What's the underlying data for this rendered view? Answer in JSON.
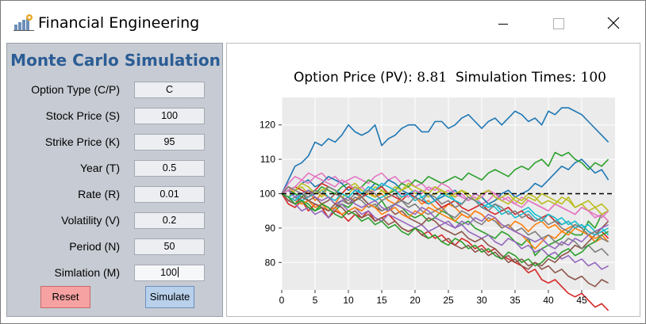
{
  "window": {
    "title": "Financial Engineering",
    "icon": "bar-chart-gear-icon",
    "controls": [
      "minimize-icon",
      "maximize-icon",
      "close-icon"
    ]
  },
  "panel": {
    "title": "Monte Carlo Simulation",
    "fields": [
      {
        "key": "option_type",
        "label": "Option Type (C/P)",
        "value": "C"
      },
      {
        "key": "stock_price",
        "label": "Stock Price (S)",
        "value": "100"
      },
      {
        "key": "strike_price",
        "label": "Strike Price (K)",
        "value": "95"
      },
      {
        "key": "year",
        "label": "Year (T)",
        "value": "0.5"
      },
      {
        "key": "rate",
        "label": "Rate (R)",
        "value": "0.01"
      },
      {
        "key": "volatility",
        "label": "Volatility (V)",
        "value": "0.2"
      },
      {
        "key": "period",
        "label": "Period (N)",
        "value": "50"
      },
      {
        "key": "simulation",
        "label": "Simlation (M)",
        "value": "100"
      }
    ],
    "reset_label": "Reset",
    "simulate_label": "Simulate"
  },
  "colors": {
    "panel_bg": "#c7cbd3",
    "title_blue": "#2b5d95",
    "reset_bg": "#f7a2a2",
    "simulate_bg": "#b8d0ea",
    "plot_bg": "#ebebeb"
  },
  "chart_title": {
    "label1": "Option Price (PV):",
    "value1": "8.81",
    "label2": "Simulation Times:",
    "value2": "100"
  },
  "chart_data": {
    "type": "line",
    "xlim": [
      0,
      50
    ],
    "ylim": [
      72,
      128
    ],
    "x_ticks": [
      0,
      5,
      10,
      15,
      20,
      25,
      30,
      35,
      40,
      45
    ],
    "y_ticks": [
      80,
      90,
      100,
      110,
      120
    ],
    "grid": true,
    "reference_line": {
      "y": 100,
      "style": "dashed",
      "color": "#000000"
    },
    "series": [
      {
        "color": "#1f77b4",
        "values": [
          100,
          104,
          108,
          109,
          111,
          115,
          114,
          116,
          115,
          117,
          120,
          118,
          117,
          118,
          120,
          114,
          116,
          117,
          119,
          120,
          120,
          118,
          118,
          121,
          121,
          119,
          120,
          122,
          123,
          121,
          119,
          121,
          122,
          120,
          122,
          124,
          123,
          121,
          122,
          120,
          124,
          123,
          125,
          125,
          124,
          123,
          121,
          119,
          117,
          115
        ]
      },
      {
        "color": "#2ca02c",
        "values": [
          100,
          101,
          99,
          98,
          97,
          95,
          96,
          93,
          95,
          97,
          96,
          98,
          99,
          97,
          96,
          98,
          95,
          97,
          96,
          94,
          93,
          94,
          92,
          93,
          95,
          94,
          92,
          91,
          92,
          90,
          89,
          88,
          87,
          89,
          88,
          86,
          85,
          87,
          82,
          84,
          85,
          86,
          87,
          89,
          88,
          88,
          92,
          90,
          94,
          95
        ]
      },
      {
        "color": "#ff7f0e",
        "values": [
          100,
          102,
          100,
          99,
          101,
          98,
          100,
          99,
          97,
          100,
          99,
          98,
          100,
          101,
          99,
          100,
          98,
          97,
          99,
          100,
          99,
          97,
          98,
          96,
          95,
          97,
          96,
          94,
          93,
          95,
          94,
          92,
          93,
          90,
          91,
          89,
          88,
          86,
          84,
          86,
          88,
          87,
          89,
          90,
          91,
          90,
          88,
          86,
          87,
          86
        ]
      },
      {
        "color": "#d62728",
        "values": [
          100,
          97,
          96,
          98,
          95,
          97,
          96,
          93,
          95,
          94,
          92,
          94,
          93,
          95,
          92,
          93,
          94,
          92,
          90,
          89,
          90,
          88,
          89,
          87,
          88,
          86,
          85,
          87,
          86,
          84,
          85,
          83,
          84,
          82,
          81,
          80,
          79,
          77,
          78,
          75,
          74,
          75,
          73,
          71,
          70,
          71,
          69,
          67,
          68,
          66
        ]
      },
      {
        "color": "#9467bd",
        "values": [
          100,
          98,
          97,
          95,
          96,
          94,
          95,
          93,
          96,
          97,
          95,
          96,
          94,
          95,
          93,
          92,
          94,
          93,
          92,
          91,
          90,
          91,
          89,
          90,
          91,
          92,
          90,
          91,
          89,
          88,
          87,
          88,
          86,
          85,
          87,
          86,
          84,
          85,
          83,
          84,
          82,
          83,
          81,
          82,
          80,
          81,
          79,
          80,
          78,
          79
        ]
      },
      {
        "color": "#8c564b",
        "values": [
          100,
          101,
          99,
          100,
          98,
          99,
          97,
          98,
          100,
          99,
          97,
          98,
          99,
          97,
          96,
          95,
          96,
          94,
          95,
          93,
          92,
          91,
          93,
          92,
          90,
          89,
          88,
          89,
          87,
          86,
          87,
          85,
          84,
          82,
          80,
          81,
          79,
          78,
          80,
          79,
          81,
          80,
          82,
          83,
          85,
          84,
          86,
          88,
          90,
          92
        ]
      },
      {
        "color": "#e377c2",
        "values": [
          100,
          103,
          105,
          104,
          106,
          105,
          106,
          104,
          105,
          103,
          104,
          105,
          104,
          103,
          105,
          106,
          104,
          105,
          103,
          104,
          102,
          103,
          101,
          102,
          100,
          101,
          99,
          100,
          98,
          99,
          97,
          98,
          100,
          99,
          98,
          97,
          99,
          98,
          97,
          96,
          95,
          97,
          96,
          95,
          94,
          96,
          95,
          93,
          94,
          92
        ]
      },
      {
        "color": "#7f7f7f",
        "values": [
          100,
          98,
          99,
          97,
          98,
          96,
          97,
          95,
          96,
          98,
          97,
          99,
          98,
          96,
          97,
          95,
          96,
          97,
          98,
          96,
          97,
          95,
          94,
          95,
          96,
          94,
          93,
          95,
          94,
          92,
          91,
          93,
          92,
          90,
          91,
          89,
          90,
          88,
          89,
          87,
          88,
          86,
          85,
          87,
          86,
          84,
          85,
          83,
          84,
          82
        ]
      },
      {
        "color": "#bcbd22",
        "values": [
          100,
          99,
          101,
          102,
          100,
          101,
          99,
          102,
          101,
          100,
          102,
          103,
          101,
          100,
          102,
          101,
          99,
          100,
          101,
          102,
          100,
          101,
          99,
          100,
          101,
          100,
          99,
          101,
          100,
          98,
          99,
          97,
          98,
          99,
          100,
          98,
          97,
          99,
          98,
          100,
          99,
          98,
          97,
          99,
          96,
          97,
          95,
          96,
          94,
          95
        ]
      },
      {
        "color": "#17becf",
        "values": [
          100,
          99,
          100,
          98,
          99,
          100,
          101,
          99,
          98,
          100,
          99,
          101,
          100,
          99,
          98,
          99,
          100,
          101,
          99,
          100,
          101,
          99,
          100,
          98,
          99,
          100,
          98,
          97,
          99,
          98,
          97,
          96,
          97,
          95,
          96,
          94,
          95,
          96,
          94,
          93,
          94,
          92,
          93,
          91,
          92,
          90,
          91,
          89,
          90,
          88
        ]
      },
      {
        "color": "#1f77b4",
        "values": [
          100,
          102,
          101,
          103,
          104,
          102,
          103,
          105,
          104,
          103,
          101,
          102,
          100,
          101,
          103,
          102,
          104,
          103,
          101,
          100,
          99,
          101,
          100,
          98,
          99,
          100,
          101,
          99,
          98,
          100,
          99,
          97,
          98,
          100,
          101,
          99,
          100,
          101,
          103,
          102,
          104,
          106,
          108,
          107,
          109,
          110,
          108,
          106,
          107,
          104
        ]
      },
      {
        "color": "#2ca02c",
        "values": [
          100,
          101,
          100,
          99,
          101,
          100,
          102,
          101,
          100,
          102,
          103,
          101,
          102,
          104,
          103,
          102,
          100,
          101,
          103,
          102,
          104,
          103,
          105,
          104,
          103,
          104,
          105,
          104,
          106,
          105,
          104,
          106,
          107,
          106,
          105,
          107,
          108,
          107,
          109,
          110,
          108,
          112,
          111,
          112,
          110,
          109,
          107,
          109,
          108,
          110
        ]
      },
      {
        "color": "#ff7f0e",
        "values": [
          100,
          99,
          98,
          97,
          98,
          96,
          97,
          95,
          96,
          94,
          95,
          96,
          95,
          97,
          96,
          94,
          95,
          96,
          94,
          93,
          95,
          94,
          96,
          95,
          94,
          93,
          92,
          94,
          93,
          95,
          94,
          92,
          93,
          91,
          90,
          92,
          91,
          89,
          91,
          92,
          90,
          91,
          89,
          88,
          90,
          89,
          88,
          87,
          88,
          86
        ]
      },
      {
        "color": "#d62728",
        "values": [
          100,
          101,
          102,
          101,
          100,
          101,
          103,
          102,
          101,
          100,
          102,
          101,
          99,
          100,
          101,
          102,
          100,
          99,
          98,
          100,
          99,
          98,
          97,
          98,
          96,
          97,
          98,
          96,
          95,
          96,
          97,
          95,
          94,
          95,
          96,
          94,
          95,
          93,
          92,
          93,
          94,
          92,
          91,
          92,
          90,
          91,
          89,
          88,
          89,
          87
        ]
      },
      {
        "color": "#9467bd",
        "values": [
          100,
          101,
          99,
          100,
          101,
          99,
          98,
          99,
          97,
          98,
          99,
          97,
          96,
          97,
          98,
          96,
          95,
          97,
          96,
          95,
          94,
          96,
          95,
          93,
          92,
          91,
          90,
          92,
          91,
          93,
          92,
          94,
          93,
          91,
          90,
          89,
          88,
          87,
          86,
          87,
          85,
          84,
          86,
          85,
          87,
          86,
          88,
          89,
          90,
          91
        ]
      },
      {
        "color": "#e377c2",
        "values": [
          100,
          101,
          102,
          104,
          103,
          105,
          104,
          103,
          102,
          104,
          103,
          101,
          102,
          100,
          101,
          103,
          102,
          101,
          100,
          99,
          101,
          100,
          102,
          101,
          103,
          102,
          100,
          99,
          98,
          100,
          99,
          101,
          100,
          98,
          99,
          97,
          96,
          98,
          97,
          96,
          95,
          97,
          96,
          95,
          94,
          96,
          95,
          94,
          93,
          95
        ]
      },
      {
        "color": "#bcbd22",
        "values": [
          100,
          102,
          101,
          103,
          102,
          100,
          101,
          102,
          101,
          99,
          100,
          102,
          101,
          100,
          99,
          101,
          100,
          102,
          101,
          103,
          102,
          101,
          100,
          102,
          101,
          99,
          100,
          101,
          99,
          98,
          100,
          101,
          99,
          98,
          97,
          99,
          98,
          100,
          99,
          97,
          98,
          97,
          99,
          98,
          96,
          97,
          98,
          96,
          97,
          95
        ]
      },
      {
        "color": "#17becf",
        "values": [
          100,
          99,
          98,
          100,
          99,
          101,
          100,
          102,
          101,
          100,
          99,
          101,
          100,
          102,
          101,
          103,
          102,
          101,
          99,
          100,
          98,
          99,
          97,
          98,
          100,
          99,
          98,
          97,
          99,
          98,
          96,
          97,
          96,
          94,
          95,
          93,
          94,
          95,
          93,
          92,
          94,
          93,
          91,
          92,
          90,
          91,
          89,
          88,
          89,
          90
        ]
      },
      {
        "color": "#8c564b",
        "values": [
          100,
          98,
          97,
          99,
          98,
          97,
          96,
          95,
          97,
          96,
          94,
          95,
          93,
          94,
          92,
          93,
          91,
          92,
          90,
          89,
          90,
          88,
          87,
          88,
          86,
          87,
          85,
          84,
          85,
          83,
          84,
          82,
          83,
          81,
          82,
          80,
          81,
          79,
          80,
          78,
          79,
          77,
          78,
          76,
          75,
          76,
          74,
          73,
          75,
          74
        ]
      },
      {
        "color": "#2ca02c",
        "values": [
          100,
          99,
          97,
          98,
          96,
          95,
          97,
          96,
          94,
          93,
          95,
          94,
          92,
          93,
          91,
          92,
          90,
          91,
          89,
          88,
          90,
          89,
          87,
          88,
          86,
          85,
          87,
          86,
          84,
          85,
          83,
          84,
          82,
          81,
          83,
          82,
          80,
          81,
          79,
          80,
          82,
          81,
          83,
          84,
          82,
          83,
          85,
          86,
          88,
          89
        ]
      },
      {
        "color": "#7f7f7f",
        "values": [
          100,
          102,
          101,
          100,
          99,
          101,
          100,
          102,
          101,
          99,
          98,
          100,
          99,
          101,
          100,
          98,
          99,
          100,
          98,
          97,
          99,
          98,
          100,
          99,
          97,
          98,
          96,
          97,
          99,
          98,
          96,
          95,
          97,
          96,
          94,
          95,
          93,
          94,
          92,
          93,
          91,
          92,
          90,
          89,
          91,
          90,
          88,
          89,
          87,
          86
        ]
      }
    ]
  }
}
